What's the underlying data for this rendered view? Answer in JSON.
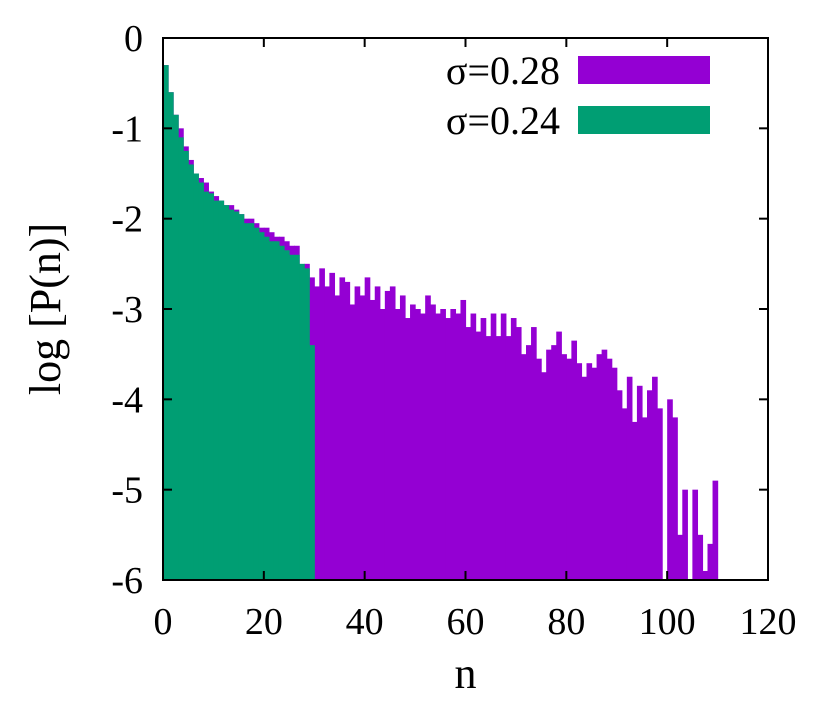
{
  "chart_data": {
    "type": "bar",
    "xlabel": "n",
    "ylabel": "log [P(n)]",
    "xlim": [
      0,
      120
    ],
    "ylim": [
      -6,
      0
    ],
    "xticks": [
      0,
      20,
      40,
      60,
      80,
      100,
      120
    ],
    "yticks": [
      0,
      -1,
      -2,
      -3,
      -4,
      -5,
      -6
    ],
    "xtick_labels": [
      "0",
      "20",
      "40",
      "60",
      "80",
      "100",
      "120"
    ],
    "ytick_labels": [
      "0",
      "-1",
      "-2",
      "-3",
      "-4",
      "-5",
      "-6"
    ],
    "grid": false,
    "legend_position": "top-right",
    "series": [
      {
        "name": "σ=0.28",
        "color": "#9400d3",
        "x": [
          0,
          1,
          2,
          3,
          4,
          5,
          6,
          7,
          8,
          9,
          10,
          11,
          12,
          13,
          14,
          15,
          16,
          17,
          18,
          19,
          20,
          21,
          22,
          23,
          24,
          25,
          26,
          27,
          28,
          29,
          30,
          31,
          32,
          33,
          34,
          35,
          36,
          37,
          38,
          39,
          40,
          41,
          42,
          43,
          44,
          45,
          46,
          47,
          48,
          49,
          50,
          51,
          52,
          53,
          54,
          55,
          56,
          57,
          58,
          59,
          60,
          61,
          62,
          63,
          64,
          65,
          66,
          67,
          68,
          69,
          70,
          71,
          72,
          73,
          74,
          75,
          76,
          77,
          78,
          79,
          80,
          81,
          82,
          83,
          84,
          85,
          86,
          87,
          88,
          89,
          90,
          91,
          92,
          93,
          94,
          95,
          96,
          97,
          98,
          99,
          100,
          101,
          102,
          103,
          104,
          105,
          106,
          107,
          108,
          109
        ],
        "values": [
          -0.3,
          -0.6,
          -0.85,
          -1.0,
          -1.2,
          -1.35,
          -1.5,
          -1.55,
          -1.6,
          -1.7,
          -1.75,
          -1.8,
          -1.85,
          -1.85,
          -1.9,
          -1.95,
          -2.0,
          -2.0,
          -2.05,
          -2.1,
          -2.1,
          -2.15,
          -2.2,
          -2.2,
          -2.25,
          -2.3,
          -2.3,
          -2.55,
          -2.5,
          -2.65,
          -2.75,
          -2.55,
          -2.75,
          -2.6,
          -2.85,
          -2.65,
          -2.7,
          -2.95,
          -2.75,
          -2.85,
          -2.65,
          -2.9,
          -2.75,
          -3.0,
          -2.8,
          -2.75,
          -3.0,
          -2.85,
          -3.1,
          -2.95,
          -3.0,
          -3.05,
          -2.85,
          -2.95,
          -3.05,
          -3.0,
          -3.1,
          -3.0,
          -3.05,
          -2.9,
          -3.2,
          -3.05,
          -3.25,
          -3.1,
          -3.3,
          -3.05,
          -3.3,
          -3.05,
          -3.3,
          -3.1,
          -3.2,
          -3.5,
          -3.4,
          -3.2,
          -3.55,
          -3.7,
          -3.45,
          -3.4,
          -3.25,
          -3.5,
          -3.55,
          -3.35,
          -3.6,
          -3.75,
          -3.6,
          -3.65,
          -3.5,
          -3.45,
          -3.55,
          -3.65,
          -3.9,
          -4.1,
          -3.75,
          -4.25,
          -3.85,
          -4.2,
          -3.9,
          -3.75,
          -4.1,
          -6.0,
          -4.0,
          -4.2,
          -5.5,
          -5.0,
          -6.0,
          -5.0,
          -5.5,
          -5.9,
          -5.6,
          -4.9
        ]
      },
      {
        "name": "σ=0.24",
        "color": "#009e73",
        "x": [
          0,
          1,
          2,
          3,
          4,
          5,
          6,
          7,
          8,
          9,
          10,
          11,
          12,
          13,
          14,
          15,
          16,
          17,
          18,
          19,
          20,
          21,
          22,
          23,
          24,
          25,
          26,
          27,
          28,
          29
        ],
        "values": [
          -0.3,
          -0.6,
          -0.85,
          -1.1,
          -1.25,
          -1.4,
          -1.5,
          -1.6,
          -1.7,
          -1.72,
          -1.8,
          -1.8,
          -1.85,
          -1.9,
          -1.92,
          -1.95,
          -2.05,
          -2.05,
          -2.1,
          -2.15,
          -2.2,
          -2.25,
          -2.25,
          -2.3,
          -2.35,
          -2.4,
          -2.4,
          -2.5,
          -2.55,
          -3.4
        ]
      }
    ]
  }
}
